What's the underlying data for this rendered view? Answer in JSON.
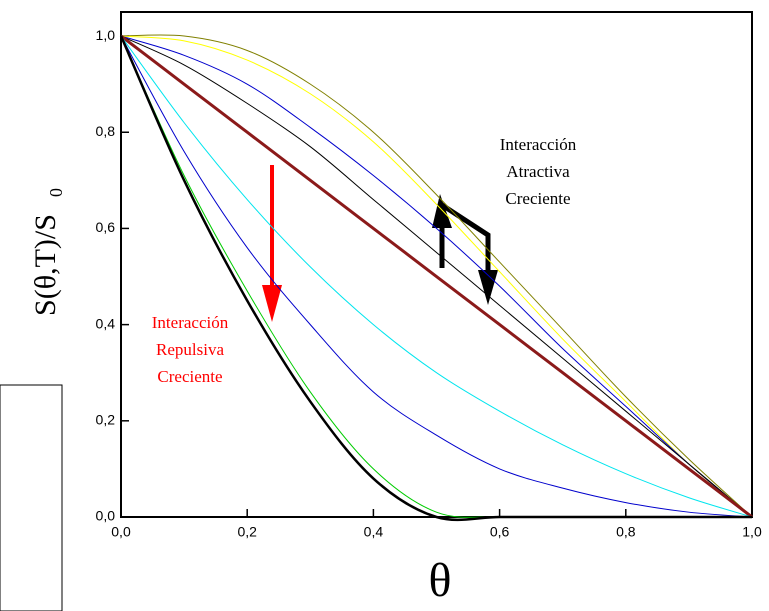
{
  "chart_data": {
    "type": "line",
    "ylabel": "S(θ,T)/S",
    "ylabel_sub": "0",
    "xlabel": "θ",
    "annotations": [
      {
        "lines": [
          "Interacción",
          "Atractiva",
          "Creciente"
        ],
        "color": "#000000"
      },
      {
        "lines": [
          "Interacción",
          "Repulsiva",
          "Creciente"
        ],
        "color": "#ff0000"
      }
    ],
    "x": [
      0,
      0.1,
      0.2,
      0.3,
      0.4,
      0.5,
      0.6,
      0.7,
      0.8,
      0.9,
      1.0
    ],
    "series": [
      {
        "color": "#808000",
        "values": [
          1.0,
          1.0,
          0.97,
          0.9,
          0.8,
          0.67,
          0.53,
          0.39,
          0.25,
          0.12,
          0
        ]
      },
      {
        "color": "#ffff00",
        "values": [
          1.0,
          0.99,
          0.95,
          0.88,
          0.78,
          0.65,
          0.51,
          0.37,
          0.24,
          0.11,
          0
        ]
      },
      {
        "color": "#0000cc",
        "values": [
          1.0,
          0.96,
          0.9,
          0.81,
          0.71,
          0.6,
          0.48,
          0.35,
          0.23,
          0.11,
          0
        ]
      },
      {
        "color": "#000000",
        "values": [
          1.0,
          0.94,
          0.86,
          0.77,
          0.66,
          0.55,
          0.44,
          0.33,
          0.22,
          0.11,
          0
        ]
      },
      {
        "color": "#8b1a1a",
        "width": 3,
        "values": [
          1.0,
          0.9,
          0.8,
          0.7,
          0.6,
          0.5,
          0.4,
          0.3,
          0.2,
          0.1,
          0
        ]
      },
      {
        "color": "#00e5ee",
        "values": [
          1.0,
          0.82,
          0.66,
          0.52,
          0.4,
          0.3,
          0.22,
          0.15,
          0.09,
          0.04,
          0
        ]
      },
      {
        "color": "#0000cc",
        "values": [
          1.0,
          0.76,
          0.56,
          0.4,
          0.26,
          0.17,
          0.1,
          0.06,
          0.03,
          0.01,
          0
        ]
      },
      {
        "color": "#00cc00",
        "values": [
          1.0,
          0.71,
          0.47,
          0.26,
          0.1,
          0.01,
          0,
          0,
          0,
          0,
          0
        ]
      },
      {
        "color": "#000000",
        "width": 2.5,
        "values": [
          1.0,
          0.7,
          0.45,
          0.24,
          0.08,
          0,
          0,
          0,
          0,
          0,
          0
        ]
      }
    ],
    "xlim": [
      0,
      1
    ],
    "ylim": [
      0,
      1.05
    ],
    "xticks": [
      {
        "value": 0,
        "label": "0,0"
      },
      {
        "value": 0.2,
        "label": "0,2"
      },
      {
        "value": 0.4,
        "label": "0,4"
      },
      {
        "value": 0.6,
        "label": "0,6"
      },
      {
        "value": 0.8,
        "label": "0,8"
      },
      {
        "value": 1.0,
        "label": "1,0"
      }
    ],
    "yticks": [
      {
        "value": 0,
        "label": "0,0"
      },
      {
        "value": 0.2,
        "label": "0,2"
      },
      {
        "value": 0.4,
        "label": "0,4"
      },
      {
        "value": 0.6,
        "label": "0,6"
      },
      {
        "value": 0.8,
        "label": "0,8"
      },
      {
        "value": 1.0,
        "label": "1,0"
      }
    ]
  }
}
